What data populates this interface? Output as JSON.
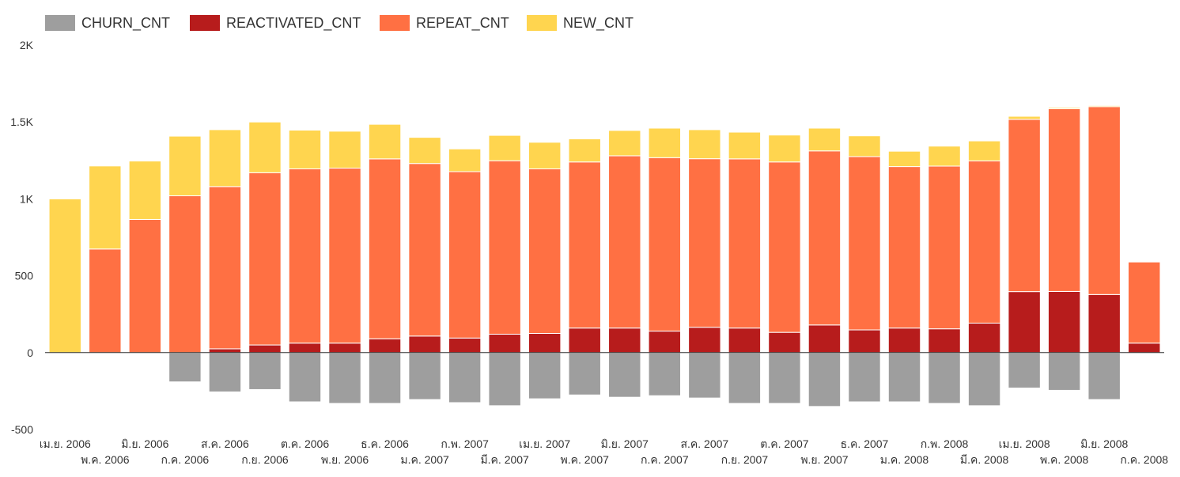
{
  "chart_data": {
    "type": "bar",
    "stacked": true,
    "legend_position": "top-left",
    "grid": false,
    "ylim": [
      -500,
      2000
    ],
    "yticks": [
      {
        "value": 2000,
        "label": "2K"
      },
      {
        "value": 1500,
        "label": "1.5K"
      },
      {
        "value": 1000,
        "label": "1K"
      },
      {
        "value": 500,
        "label": "500"
      },
      {
        "value": 0,
        "label": "0"
      },
      {
        "value": -500,
        "label": "-500"
      }
    ],
    "categories": [
      "เม.ย. 2006",
      "พ.ค. 2006",
      "มิ.ย. 2006",
      "ก.ค. 2006",
      "ส.ค. 2006",
      "ก.ย. 2006",
      "ต.ค. 2006",
      "พ.ย. 2006",
      "ธ.ค. 2006",
      "ม.ค. 2007",
      "ก.พ. 2007",
      "มี.ค. 2007",
      "เม.ย. 2007",
      "พ.ค. 2007",
      "มิ.ย. 2007",
      "ก.ค. 2007",
      "ส.ค. 2007",
      "ก.ย. 2007",
      "ต.ค. 2007",
      "พ.ย. 2007",
      "ธ.ค. 2007",
      "ม.ค. 2008",
      "ก.พ. 2008",
      "มี.ค. 2008",
      "เม.ย. 2008",
      "พ.ค. 2008",
      "มิ.ย. 2008",
      "ก.ค. 2008"
    ],
    "series": [
      {
        "name": "CHURN_CNT",
        "color": "#9e9e9e",
        "values": [
          0,
          0,
          0,
          -190,
          -255,
          -240,
          -320,
          -330,
          -330,
          -305,
          -325,
          -345,
          -300,
          -275,
          -290,
          -280,
          -295,
          -330,
          -330,
          -350,
          -320,
          -320,
          -330,
          -345,
          -230,
          -245,
          -305,
          0
        ]
      },
      {
        "name": "REACTIVATED_CNT",
        "color": "#b71c1c",
        "values": [
          0,
          0,
          0,
          0,
          25,
          50,
          62,
          62,
          90,
          108,
          95,
          120,
          125,
          160,
          160,
          140,
          165,
          160,
          132,
          180,
          148,
          160,
          155,
          192,
          397,
          398,
          378,
          62
        ]
      },
      {
        "name": "REPEAT_CNT",
        "color": "#ff7043",
        "values": [
          0,
          674,
          866,
          1020,
          1055,
          1120,
          1133,
          1138,
          1170,
          1122,
          1082,
          1128,
          1070,
          1080,
          1120,
          1128,
          1096,
          1100,
          1108,
          1132,
          1127,
          1050,
          1058,
          1055,
          1120,
          1188,
          1222,
          528
        ]
      },
      {
        "name": "NEW_CNT",
        "color": "#ffd54f",
        "values": [
          1000,
          540,
          380,
          388,
          370,
          330,
          252,
          240,
          225,
          170,
          148,
          165,
          173,
          150,
          165,
          192,
          189,
          174,
          175,
          148,
          135,
          100,
          130,
          130,
          20,
          8,
          7,
          5
        ]
      }
    ]
  }
}
